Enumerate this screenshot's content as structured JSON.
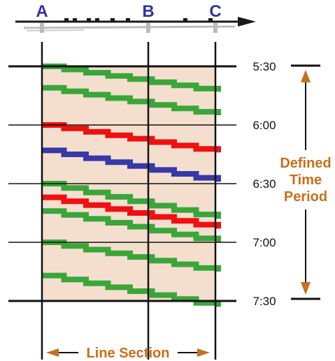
{
  "stations": [
    {
      "label": "A"
    },
    {
      "label": "B"
    },
    {
      "label": "C"
    }
  ],
  "times": [
    "5:30",
    "6:00",
    "6:30",
    "7:00",
    "7:30"
  ],
  "period_label": [
    "Defined",
    "Time",
    "Period"
  ],
  "section_label": "Line Section",
  "colors": {
    "background": "#f4dfcf",
    "accent_text": "#c4701d",
    "station_text": "#3333a0",
    "green": "#3aa63a",
    "red": "#ee1111",
    "blue": "#3838a8",
    "grid": "#111111"
  },
  "trains": [
    {
      "color": "green",
      "start": "5:30",
      "end": "5:43"
    },
    {
      "color": "green",
      "start": "5:41",
      "end": "5:55"
    },
    {
      "color": "red",
      "start": "6:00",
      "end": "6:14"
    },
    {
      "color": "blue",
      "start": "6:13",
      "end": "6:29"
    },
    {
      "color": "green",
      "start": "6:30",
      "end": "6:48"
    },
    {
      "color": "red",
      "start": "6:37",
      "end": "6:53"
    },
    {
      "color": "green",
      "start": "6:44",
      "end": "7:00"
    },
    {
      "color": "green",
      "start": "7:00",
      "end": "7:15"
    },
    {
      "color": "green",
      "start": "7:17",
      "end": "7:33"
    }
  ]
}
